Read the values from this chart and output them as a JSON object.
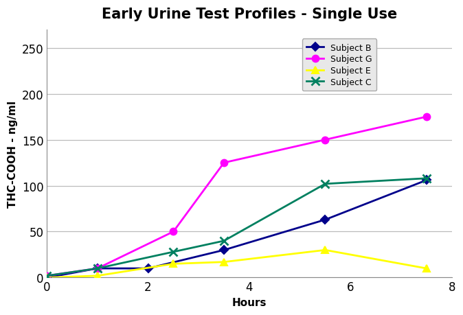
{
  "title": "Early Urine Test Profiles - Single Use",
  "xlabel": "Hours",
  "ylabel": "THC-COOH - ng/ml",
  "xlim": [
    0,
    8
  ],
  "ylim": [
    0,
    270
  ],
  "yticks": [
    0,
    50,
    100,
    150,
    200,
    250
  ],
  "xticks": [
    0,
    2,
    4,
    6,
    8
  ],
  "series": [
    {
      "label": "Subject B",
      "color": "#00008B",
      "marker": "D",
      "markersize": 6,
      "x": [
        0,
        1,
        2,
        3.5,
        5.5,
        7.5
      ],
      "y": [
        0,
        10,
        10,
        30,
        63,
        106
      ]
    },
    {
      "label": "Subject G",
      "color": "#FF00FF",
      "marker": "o",
      "markersize": 7,
      "x": [
        0,
        1,
        2.5,
        3.5,
        5.5,
        7.5
      ],
      "y": [
        2,
        10,
        50,
        125,
        150,
        175
      ]
    },
    {
      "label": "Subject E",
      "color": "#FFFF00",
      "marker": "^",
      "markersize": 7,
      "x": [
        0,
        1,
        2.5,
        3.5,
        5.5,
        7.5
      ],
      "y": [
        0,
        2,
        15,
        17,
        30,
        10
      ]
    },
    {
      "label": "Subject C",
      "color": "#008060",
      "marker": "x",
      "markersize": 9,
      "x": [
        0,
        1,
        2.5,
        3.5,
        5.5,
        7.5
      ],
      "y": [
        2,
        10,
        28,
        40,
        102,
        108
      ]
    }
  ],
  "background_color": "#ffffff",
  "title_fontsize": 15,
  "label_fontsize": 11,
  "tick_fontsize": 12,
  "legend_fontsize": 9,
  "linewidth": 2.0,
  "grid_color": "#bbbbbb",
  "legend_box_color": "#e8e8e8"
}
